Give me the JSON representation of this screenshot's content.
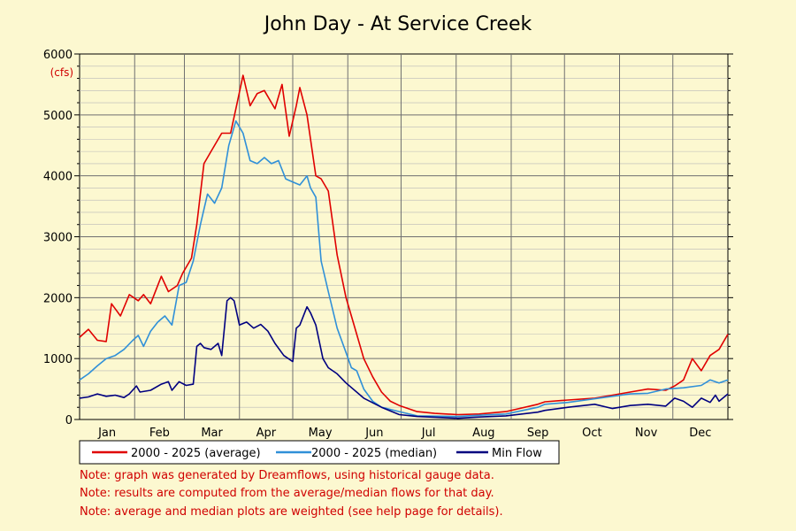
{
  "chart_data": {
    "type": "line",
    "title": "John Day - At Service Creek",
    "y_unit_label": "(cfs)",
    "xlabel": "",
    "ylabel": "",
    "ylim": [
      0,
      6000
    ],
    "y_ticks": [
      0,
      1000,
      2000,
      3000,
      4000,
      5000,
      6000
    ],
    "xlim": [
      0,
      365
    ],
    "months": [
      "Jan",
      "Feb",
      "Mar",
      "Apr",
      "May",
      "Jun",
      "Jul",
      "Aug",
      "Sep",
      "Oct",
      "Nov",
      "Dec"
    ],
    "grid": true,
    "legend_position": "bottom",
    "series": [
      {
        "name": "2000 - 2025 (average)",
        "color": "#e00000",
        "x": [
          0,
          5,
          10,
          15,
          18,
          23,
          28,
          33,
          36,
          40,
          46,
          50,
          55,
          58,
          63,
          66,
          70,
          74,
          80,
          85,
          88,
          92,
          96,
          100,
          104,
          110,
          114,
          118,
          122,
          124,
          128,
          130,
          133,
          136,
          140,
          145,
          150,
          153,
          156,
          160,
          165,
          170,
          175,
          180,
          190,
          200,
          213,
          225,
          240,
          258,
          262,
          275,
          290,
          300,
          310,
          320,
          330,
          335,
          340,
          345,
          350,
          355,
          360,
          365
        ],
        "y": [
          1350,
          1480,
          1300,
          1280,
          1900,
          1700,
          2050,
          1950,
          2050,
          1900,
          2350,
          2100,
          2200,
          2400,
          2650,
          3200,
          4200,
          4400,
          4700,
          4700,
          5100,
          5650,
          5150,
          5350,
          5400,
          5100,
          5500,
          4650,
          5150,
          5450,
          5000,
          4600,
          4000,
          3950,
          3750,
          2700,
          2000,
          1700,
          1400,
          1000,
          700,
          450,
          300,
          230,
          130,
          100,
          80,
          90,
          130,
          250,
          290,
          320,
          350,
          400,
          450,
          500,
          480,
          550,
          650,
          1000,
          800,
          1050,
          1150,
          1400
        ]
      },
      {
        "name": "2000 - 2025 (median)",
        "color": "#3090d8",
        "x": [
          0,
          5,
          10,
          15,
          20,
          25,
          30,
          33,
          36,
          40,
          44,
          48,
          52,
          56,
          60,
          64,
          68,
          72,
          76,
          80,
          84,
          88,
          92,
          96,
          100,
          104,
          108,
          112,
          116,
          120,
          124,
          128,
          130,
          133,
          136,
          140,
          145,
          150,
          153,
          156,
          160,
          165,
          170,
          180,
          190,
          213,
          225,
          240,
          258,
          262,
          275,
          300,
          310,
          320,
          330,
          340,
          350,
          355,
          360,
          365
        ],
        "y": [
          650,
          750,
          880,
          1000,
          1050,
          1150,
          1300,
          1380,
          1200,
          1450,
          1600,
          1700,
          1550,
          2200,
          2250,
          2600,
          3200,
          3700,
          3550,
          3800,
          4500,
          4900,
          4700,
          4250,
          4200,
          4300,
          4200,
          4250,
          3950,
          3900,
          3850,
          4000,
          3800,
          3650,
          2600,
          2100,
          1500,
          1100,
          850,
          800,
          500,
          300,
          200,
          130,
          60,
          50,
          70,
          90,
          200,
          250,
          280,
          380,
          420,
          430,
          500,
          520,
          560,
          650,
          600,
          650
        ]
      },
      {
        "name": "Min Flow",
        "color": "#000080",
        "x": [
          0,
          5,
          10,
          15,
          20,
          25,
          28,
          32,
          34,
          40,
          46,
          50,
          52,
          56,
          60,
          64,
          66,
          68,
          70,
          74,
          78,
          80,
          83,
          85,
          87,
          90,
          94,
          98,
          102,
          106,
          110,
          115,
          120,
          122,
          124,
          128,
          130,
          133,
          137,
          140,
          145,
          150,
          160,
          170,
          180,
          190,
          213,
          225,
          240,
          258,
          262,
          275,
          290,
          300,
          310,
          320,
          330,
          335,
          340,
          345,
          350,
          355,
          358,
          360,
          365
        ],
        "y": [
          350,
          370,
          420,
          380,
          400,
          360,
          420,
          550,
          450,
          480,
          580,
          620,
          480,
          620,
          560,
          580,
          1200,
          1250,
          1180,
          1150,
          1250,
          1050,
          1950,
          2000,
          1950,
          1550,
          1600,
          1500,
          1560,
          1450,
          1250,
          1050,
          950,
          1500,
          1550,
          1850,
          1750,
          1550,
          1000,
          850,
          750,
          600,
          350,
          200,
          80,
          50,
          20,
          40,
          60,
          120,
          150,
          200,
          250,
          180,
          230,
          250,
          220,
          350,
          300,
          200,
          350,
          280,
          400,
          300,
          420
        ]
      }
    ]
  },
  "notes": [
    "Note: graph was generated by Dreamflows, using historical gauge data.",
    "Note: results are computed from the average/median flows for that day.",
    "Note: average and median plots are weighted (see help page for details)."
  ]
}
